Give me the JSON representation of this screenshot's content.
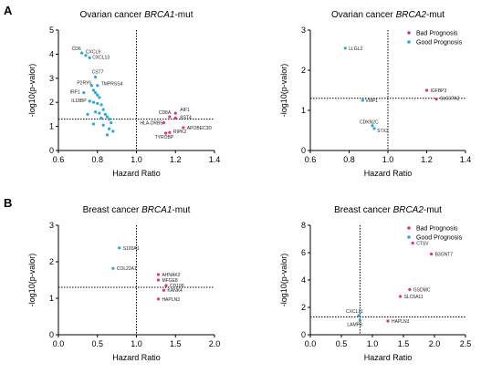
{
  "colors": {
    "bad": "#e8316d",
    "good": "#2aa7e0",
    "axis": "#000000"
  },
  "legend": {
    "bad_label": "Bad Prognosis",
    "good_label": "Good Prognosis"
  },
  "sections": [
    {
      "letter": "A"
    },
    {
      "letter": "B"
    }
  ],
  "chart_data": [
    {
      "type": "scatter",
      "title_prefix": "Ovarian cancer ",
      "title_gene": "BRCA1",
      "title_suffix": "-mut",
      "xlabel": "Hazard Ratio",
      "ylabel": "-log10(p-valor)",
      "xlim": [
        0.6,
        1.4
      ],
      "ylim": [
        0,
        5
      ],
      "xticks": [
        "0.6",
        "0.8",
        "1.0",
        "1.2",
        "1.4"
      ],
      "yticks": [
        "0",
        "1",
        "2",
        "3",
        "4",
        "5"
      ],
      "x_ref": 1.0,
      "y_ref": 1.3,
      "show_legend": false,
      "series": [
        {
          "kind": "good",
          "points": [
            {
              "label": "CD6",
              "x": 0.72,
              "y": 4.05
            },
            {
              "label": "CXCL9",
              "x": 0.74,
              "y": 3.95
            },
            {
              "label": "CXCL13",
              "x": 0.76,
              "y": 3.85
            },
            {
              "label": "CST7",
              "x": 0.79,
              "y": 3.05
            },
            {
              "label": "P2RY6",
              "x": 0.77,
              "y": 2.7
            },
            {
              "label": "TMPRSS4",
              "x": 0.8,
              "y": 2.7
            },
            {
              "label": "IRF1",
              "x": 0.73,
              "y": 2.4
            },
            {
              "label": "IL18BP",
              "x": 0.76,
              "y": 2.05
            },
            {
              "label": "",
              "x": 0.78,
              "y": 2.5
            },
            {
              "label": "",
              "x": 0.79,
              "y": 2.4
            },
            {
              "label": "",
              "x": 0.8,
              "y": 2.3
            },
            {
              "label": "",
              "x": 0.81,
              "y": 2.2
            },
            {
              "label": "",
              "x": 0.78,
              "y": 2.0
            },
            {
              "label": "",
              "x": 0.8,
              "y": 1.95
            },
            {
              "label": "",
              "x": 0.82,
              "y": 1.9
            },
            {
              "label": "",
              "x": 0.83,
              "y": 1.7
            },
            {
              "label": "",
              "x": 0.79,
              "y": 1.6
            },
            {
              "label": "",
              "x": 0.81,
              "y": 1.55
            },
            {
              "label": "",
              "x": 0.84,
              "y": 1.5
            },
            {
              "label": "",
              "x": 0.75,
              "y": 1.5
            },
            {
              "label": "",
              "x": 0.85,
              "y": 1.4
            },
            {
              "label": "",
              "x": 0.82,
              "y": 1.35
            },
            {
              "label": "",
              "x": 0.86,
              "y": 1.3
            },
            {
              "label": "",
              "x": 0.87,
              "y": 1.15
            },
            {
              "label": "",
              "x": 0.83,
              "y": 1.05
            },
            {
              "label": "",
              "x": 0.78,
              "y": 1.1
            },
            {
              "label": "",
              "x": 0.86,
              "y": 0.9
            },
            {
              "label": "",
              "x": 0.88,
              "y": 0.8
            },
            {
              "label": "",
              "x": 0.85,
              "y": 0.65
            }
          ]
        },
        {
          "kind": "bad",
          "points": [
            {
              "label": "AIF1",
              "x": 1.2,
              "y": 1.55
            },
            {
              "label": "CD8A",
              "x": 1.17,
              "y": 1.4
            },
            {
              "label": "BST4",
              "x": 1.2,
              "y": 1.35
            },
            {
              "label": "HLA-DRB5",
              "x": 1.14,
              "y": 1.15
            },
            {
              "label": "APOBEC3D",
              "x": 1.24,
              "y": 0.95
            },
            {
              "label": "RIPK2",
              "x": 1.17,
              "y": 0.75
            },
            {
              "label": "TYROBP",
              "x": 1.15,
              "y": 0.72
            }
          ]
        }
      ]
    },
    {
      "type": "scatter",
      "title_prefix": "Ovarian cancer ",
      "title_gene": "BRCA2",
      "title_suffix": "-mut",
      "xlabel": "Hazard Ratio",
      "ylabel": "-log10(p-valor)",
      "xlim": [
        0.6,
        1.4
      ],
      "ylim": [
        0,
        3
      ],
      "xticks": [
        "0.6",
        "0.8",
        "1.0",
        "1.2",
        "1.4"
      ],
      "yticks": [
        "0",
        "1",
        "2",
        "3"
      ],
      "x_ref": 1.0,
      "y_ref": 1.3,
      "show_legend": true,
      "series": [
        {
          "kind": "good",
          "points": [
            {
              "label": "LLGL2",
              "x": 0.78,
              "y": 2.55
            },
            {
              "label": "VMP1",
              "x": 0.87,
              "y": 1.25
            },
            {
              "label": "CDKN2C",
              "x": 0.92,
              "y": 0.62
            },
            {
              "label": "STX2",
              "x": 0.93,
              "y": 0.55
            }
          ]
        },
        {
          "kind": "bad",
          "points": [
            {
              "label": "IGFBP3",
              "x": 1.2,
              "y": 1.5
            },
            {
              "label": "SLC37A2",
              "x": 1.25,
              "y": 1.28
            }
          ]
        }
      ]
    },
    {
      "type": "scatter",
      "title_prefix": "Breast cancer ",
      "title_gene": "BRCA1",
      "title_suffix": "-mut",
      "xlabel": "Hazard Ratio",
      "ylabel": "-log10(p-valor)",
      "xlim": [
        0.0,
        2.0
      ],
      "ylim": [
        0,
        3
      ],
      "xticks": [
        "0.0",
        "0.5",
        "1.0",
        "1.5",
        "2.0"
      ],
      "yticks": [
        "0",
        "1",
        "2",
        "3"
      ],
      "x_ref": 1.0,
      "y_ref": 1.3,
      "show_legend": false,
      "series": [
        {
          "kind": "good",
          "points": [
            {
              "label": "S100A1",
              "x": 0.78,
              "y": 2.38
            },
            {
              "label": "COL22A1",
              "x": 0.7,
              "y": 1.82
            }
          ]
        },
        {
          "kind": "bad",
          "points": [
            {
              "label": "AHNAK2",
              "x": 1.28,
              "y": 1.65
            },
            {
              "label": "MFGE8",
              "x": 1.28,
              "y": 1.5
            },
            {
              "label": "CD109",
              "x": 1.38,
              "y": 1.35
            },
            {
              "label": "KANK4",
              "x": 1.35,
              "y": 1.22
            },
            {
              "label": "HAPLN3",
              "x": 1.28,
              "y": 0.98
            }
          ]
        }
      ]
    },
    {
      "type": "scatter",
      "title_prefix": "Breast cancer ",
      "title_gene": "BRCA2",
      "title_suffix": "-mut",
      "xlabel": "Hazard Ratio",
      "ylabel": "-log10(p-valor)",
      "xlim": [
        0.0,
        2.5
      ],
      "ylim": [
        0,
        8
      ],
      "xticks": [
        "0.0",
        "0.5",
        "1.0",
        "1.5",
        "2.0",
        "2.5"
      ],
      "yticks": [
        "0",
        "2",
        "4",
        "6",
        "8"
      ],
      "x_ref": 0.8,
      "y_ref": 1.3,
      "show_legend": true,
      "series": [
        {
          "kind": "good",
          "points": [
            {
              "label": "CXCL11",
              "x": 0.78,
              "y": 1.4
            },
            {
              "label": "LAMP3",
              "x": 0.8,
              "y": 1.05
            }
          ]
        },
        {
          "kind": "bad",
          "points": [
            {
              "label": "CTSV",
              "x": 1.65,
              "y": 6.7
            },
            {
              "label": "B3GNT7",
              "x": 1.95,
              "y": 5.9
            },
            {
              "label": "GSDMC",
              "x": 1.6,
              "y": 3.3
            },
            {
              "label": "SLC6A11",
              "x": 1.45,
              "y": 2.8
            },
            {
              "label": "HAPLN3",
              "x": 1.25,
              "y": 1.0
            }
          ]
        }
      ]
    }
  ]
}
